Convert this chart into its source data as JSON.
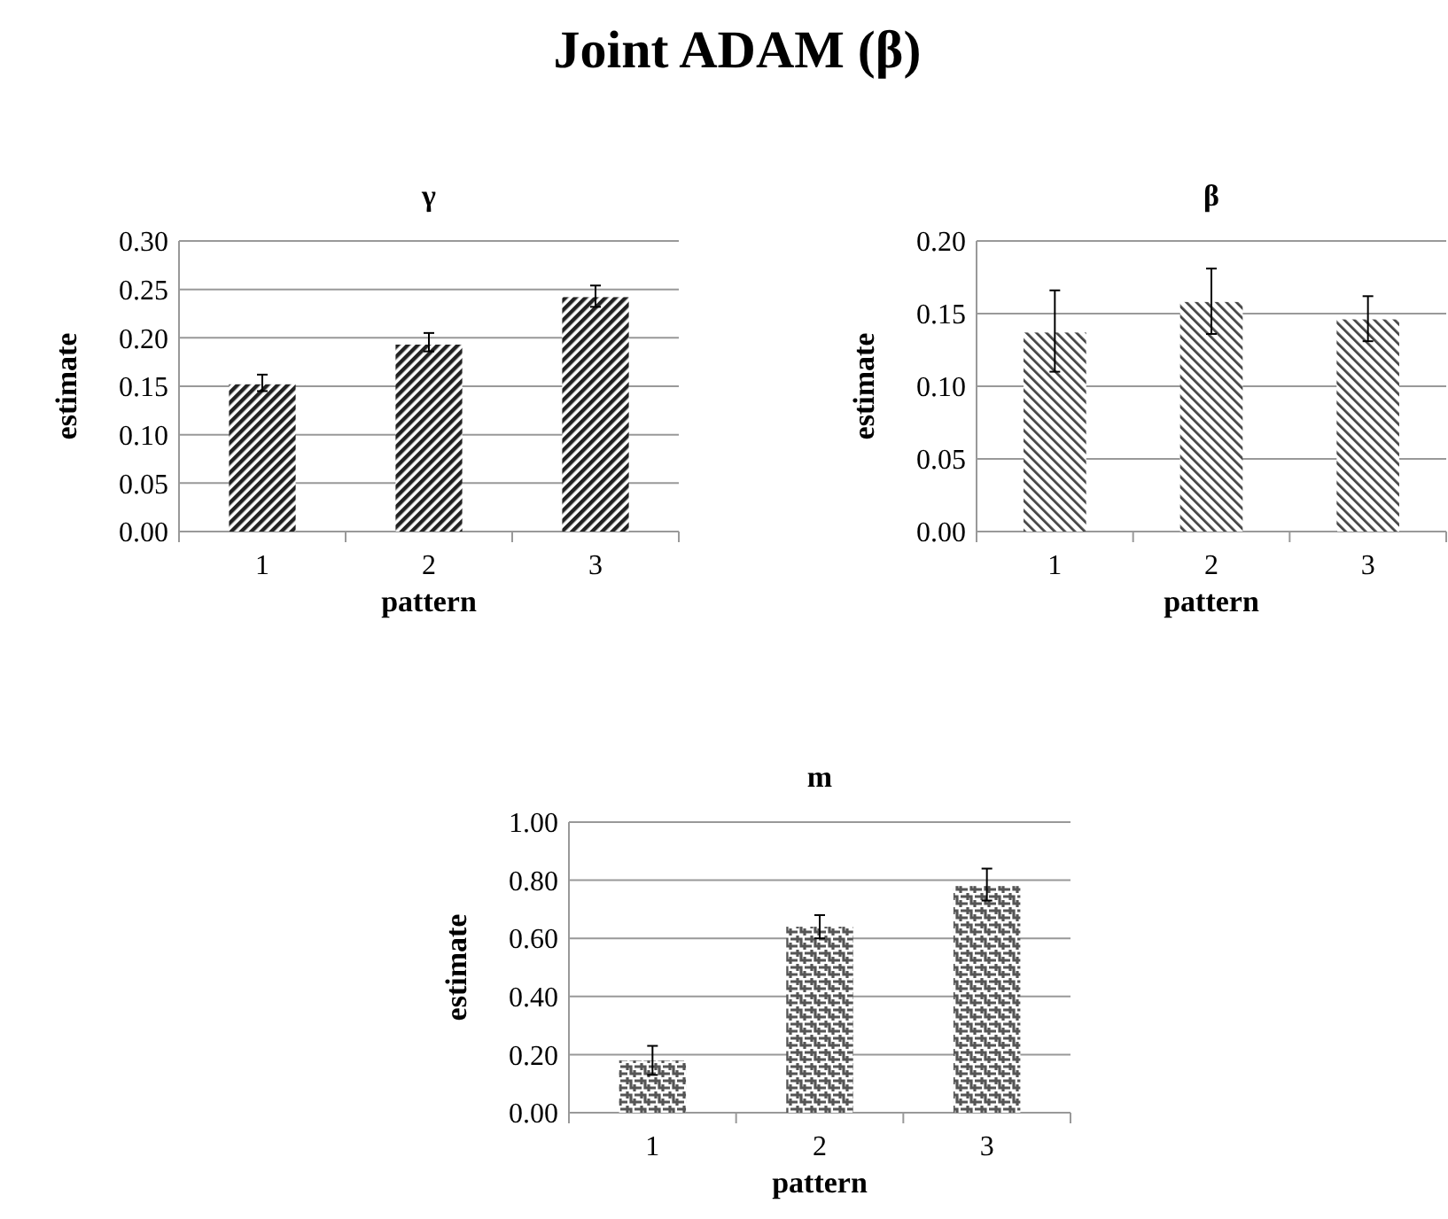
{
  "chart_data": [
    {
      "type": "bar",
      "title": "γ",
      "annotations": [
        "Joint ADAM (β)"
      ],
      "xlabel": "pattern",
      "ylabel": "estimate",
      "categories": [
        "1",
        "2",
        "3"
      ],
      "values": [
        0.152,
        0.193,
        0.242
      ],
      "errors": [
        [
          0.145,
          0.162
        ],
        [
          0.186,
          0.205
        ],
        [
          0.232,
          0.254
        ]
      ],
      "color": "#222222",
      "ylim": [
        0,
        0.3
      ],
      "yticks": [
        {
          "value": 0,
          "label": "0.00"
        },
        {
          "value": 0.05,
          "label": "0.05"
        },
        {
          "value": 0.1,
          "label": "0.10"
        },
        {
          "value": 0.15,
          "label": "0.15"
        },
        {
          "value": 0.2,
          "label": "0.20"
        },
        {
          "value": 0.25,
          "label": "0.25"
        },
        {
          "value": 0.3,
          "label": "0.30"
        }
      ],
      "grid": "y"
    },
    {
      "type": "bar",
      "title": "β",
      "xlabel": "pattern",
      "ylabel": "estimate",
      "categories": [
        "1",
        "2",
        "3"
      ],
      "values": [
        0.137,
        0.158,
        0.146
      ],
      "errors": [
        [
          0.11,
          0.166
        ],
        [
          0.136,
          0.181
        ],
        [
          0.131,
          0.162
        ]
      ],
      "color": "#444444",
      "ylim": [
        0,
        0.2
      ],
      "yticks": [
        {
          "value": 0,
          "label": "0.00"
        },
        {
          "value": 0.05,
          "label": "0.05"
        },
        {
          "value": 0.1,
          "label": "0.10"
        },
        {
          "value": 0.15,
          "label": "0.15"
        },
        {
          "value": 0.2,
          "label": "0.20"
        }
      ],
      "grid": "y"
    },
    {
      "type": "bar",
      "title": "m",
      "xlabel": "pattern",
      "ylabel": "estimate",
      "categories": [
        "1",
        "2",
        "3"
      ],
      "values": [
        0.18,
        0.64,
        0.78
      ],
      "errors": [
        [
          0.13,
          0.23
        ],
        [
          0.6,
          0.68
        ],
        [
          0.73,
          0.84
        ]
      ],
      "color": "#555555",
      "ylim": [
        0,
        1
      ],
      "yticks": [
        {
          "value": 0,
          "label": "0.00"
        },
        {
          "value": 0.2,
          "label": "0.20"
        },
        {
          "value": 0.4,
          "label": "0.40"
        },
        {
          "value": 0.6,
          "label": "0.60"
        },
        {
          "value": 0.8,
          "label": "0.80"
        },
        {
          "value": 1,
          "label": "1.00"
        }
      ],
      "grid": "y"
    }
  ]
}
